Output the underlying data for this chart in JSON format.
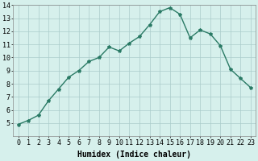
{
  "x": [
    0,
    1,
    2,
    3,
    4,
    5,
    6,
    7,
    8,
    9,
    10,
    11,
    12,
    13,
    14,
    15,
    16,
    17,
    18,
    19,
    20,
    21,
    22,
    23
  ],
  "y": [
    4.9,
    5.2,
    5.6,
    6.7,
    7.6,
    8.5,
    9.0,
    9.7,
    10.0,
    10.8,
    10.5,
    11.1,
    11.6,
    12.5,
    13.5,
    13.8,
    13.3,
    11.5,
    12.1,
    11.8,
    10.9,
    9.1,
    8.4,
    7.7
  ],
  "line_color": "#2a7a65",
  "marker": "*",
  "bg_color": "#d6f0ec",
  "grid_color": "#aaccca",
  "xlabel": "Humidex (Indice chaleur)",
  "ylim_min": 4,
  "ylim_max": 14,
  "xlim_min": -0.5,
  "xlim_max": 23.5,
  "yticks": [
    5,
    6,
    7,
    8,
    9,
    10,
    11,
    12,
    13,
    14
  ],
  "xticks": [
    0,
    1,
    2,
    3,
    4,
    5,
    6,
    7,
    8,
    9,
    10,
    11,
    12,
    13,
    14,
    15,
    16,
    17,
    18,
    19,
    20,
    21,
    22,
    23
  ],
  "xlabel_fontsize": 7,
  "tick_fontsize": 6,
  "linewidth": 1.0,
  "markersize": 3
}
